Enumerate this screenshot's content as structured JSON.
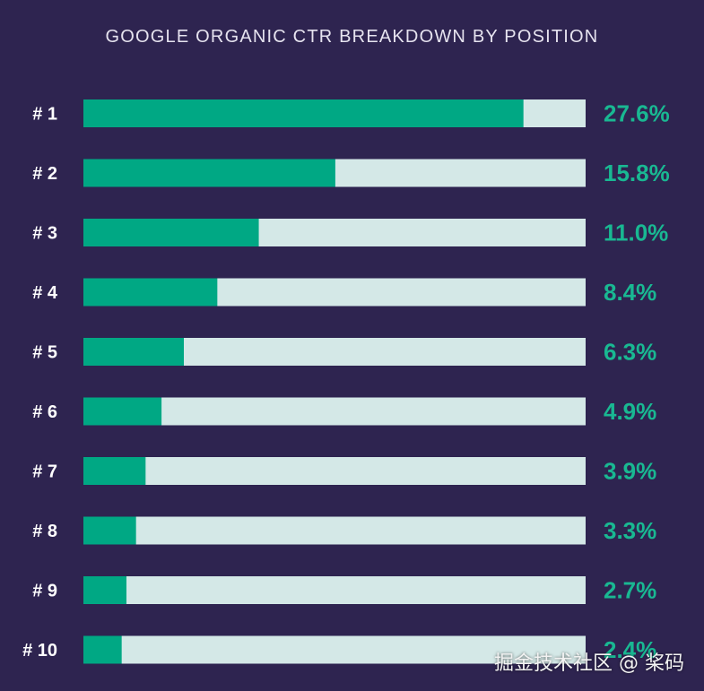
{
  "chart_data": {
    "type": "bar",
    "orientation": "horizontal",
    "title": "GOOGLE ORGANIC CTR BREAKDOWN BY POSITION",
    "categories": [
      "# 1",
      "# 2",
      "# 3",
      "# 4",
      "# 5",
      "# 6",
      "# 7",
      "# 8",
      "# 9",
      "# 10"
    ],
    "values": [
      27.6,
      15.8,
      11.0,
      8.4,
      6.3,
      4.9,
      3.9,
      3.3,
      2.7,
      2.4
    ],
    "value_labels": [
      "27.6%",
      "15.8%",
      "11.0%",
      "8.4%",
      "6.3%",
      "4.9%",
      "3.9%",
      "3.3%",
      "2.7%",
      "2.4%"
    ],
    "xlim": [
      0,
      31.5
    ],
    "xlabel": "",
    "ylabel": "",
    "grid": false,
    "legend": "none"
  },
  "colors": {
    "background": "#2e2450",
    "bar_fill": "#00a884",
    "bar_track": "#d4e8e7",
    "value_text": "#19b892",
    "label_text": "#ffffff"
  },
  "watermark": "掘金技术社区 @ 桨码"
}
